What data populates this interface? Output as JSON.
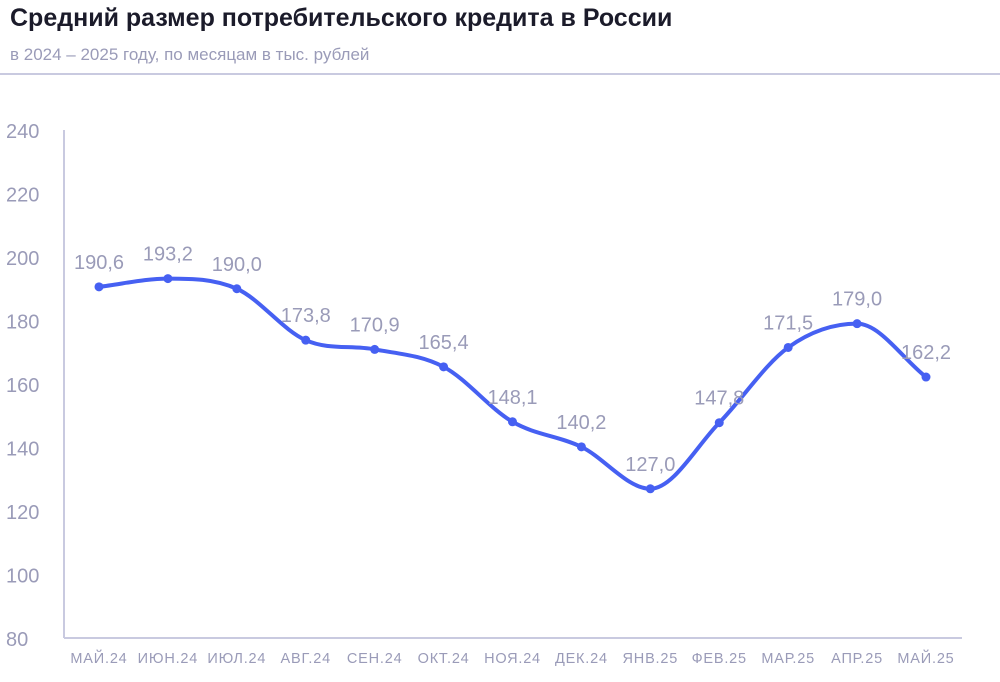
{
  "header": {
    "title": "Средний размер потребительского кредита в России",
    "subtitle": "в 2024 – 2025 году, по месяцам в тыс. рублей"
  },
  "colors": {
    "line": "#4660f2",
    "axis": "#c9cae0",
    "text_muted": "#9a9bb8",
    "title": "#1b1b2a"
  },
  "chart_data": {
    "type": "line",
    "title": "Средний размер потребительского кредита в России",
    "subtitle": "в 2024 – 2025 году, по месяцам в тыс. рублей",
    "xlabel": "",
    "ylabel": "",
    "categories": [
      "МАЙ.24",
      "ИЮН.24",
      "ИЮЛ.24",
      "АВГ.24",
      "СЕН.24",
      "ОКТ.24",
      "НОЯ.24",
      "ДЕК.24",
      "ЯНВ.25",
      "ФЕВ.25",
      "МАР.25",
      "АПР.25",
      "МАЙ.25"
    ],
    "series": [
      {
        "values": [
          190.6,
          193.2,
          190.0,
          173.8,
          170.9,
          165.4,
          148.1,
          140.2,
          127.0,
          147.8,
          171.5,
          179.0,
          162.2
        ],
        "labels": [
          "190,6",
          "193,2",
          "190,0",
          "173,8",
          "170,9",
          "165,4",
          "148,1",
          "140,2",
          "127,0",
          "147,8",
          "171,5",
          "179,0",
          "162,2"
        ]
      }
    ],
    "ylim": [
      80,
      240
    ],
    "yticks": [
      "80",
      "100",
      "120",
      "140",
      "160",
      "180",
      "200",
      "220",
      "240"
    ],
    "grid": false,
    "smooth": true
  }
}
